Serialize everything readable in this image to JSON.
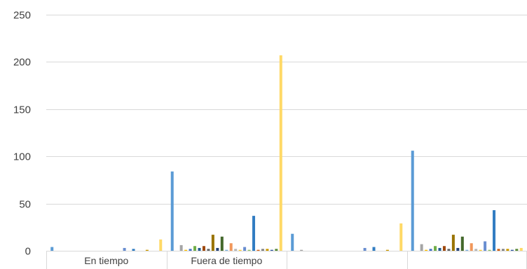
{
  "chart_data": {
    "type": "bar",
    "title": "",
    "xlabel": "",
    "ylabel": "",
    "ylim": [
      0,
      250
    ],
    "yticks": [
      0,
      50,
      100,
      150,
      200,
      250
    ],
    "grid": true,
    "legend": "none",
    "categories": [
      "En tiempo",
      "Fuera de tiempo",
      "",
      ""
    ],
    "series_colors": [
      "#5b9bd5",
      "#ed7d31",
      "#a5a5a5",
      "#ffc000",
      "#4472c4",
      "#70ad47",
      "#255e91",
      "#9e480e",
      "#636363",
      "#997300",
      "#264478",
      "#43682b",
      "#7cafdd",
      "#f1975a",
      "#b7b7b7",
      "#ffcd33",
      "#698ed0",
      "#8cc168",
      "#327dc2",
      "#d26012",
      "#848484",
      "#cc9a00",
      "#335aa1",
      "#5a8a39",
      "#ffd966"
    ],
    "groups": [
      {
        "label": "En tiempo",
        "values": [
          4,
          0,
          0,
          0,
          0,
          0,
          0,
          0,
          0,
          0,
          0,
          0,
          0,
          0,
          0,
          0,
          3,
          0,
          2,
          0,
          0,
          1,
          0,
          0,
          12
        ]
      },
      {
        "label": "Fuera de tiempo",
        "values": [
          84,
          0,
          6,
          1,
          2,
          5,
          3,
          5,
          2,
          17,
          3,
          15,
          1,
          8,
          2,
          1,
          4,
          1,
          37,
          1,
          2,
          2,
          1,
          2,
          207
        ]
      },
      {
        "label": "",
        "values": [
          18,
          0,
          1,
          0,
          0,
          0,
          0,
          0,
          0,
          0,
          0,
          0,
          0,
          0,
          0,
          0,
          3,
          0,
          4,
          0,
          0,
          1,
          0,
          0,
          29
        ]
      },
      {
        "label": "",
        "values": [
          106,
          0,
          7,
          1,
          2,
          5,
          3,
          5,
          2,
          17,
          3,
          15,
          1,
          8,
          2,
          1,
          10,
          1,
          43,
          2,
          2,
          2,
          1,
          2,
          3
        ]
      }
    ]
  }
}
